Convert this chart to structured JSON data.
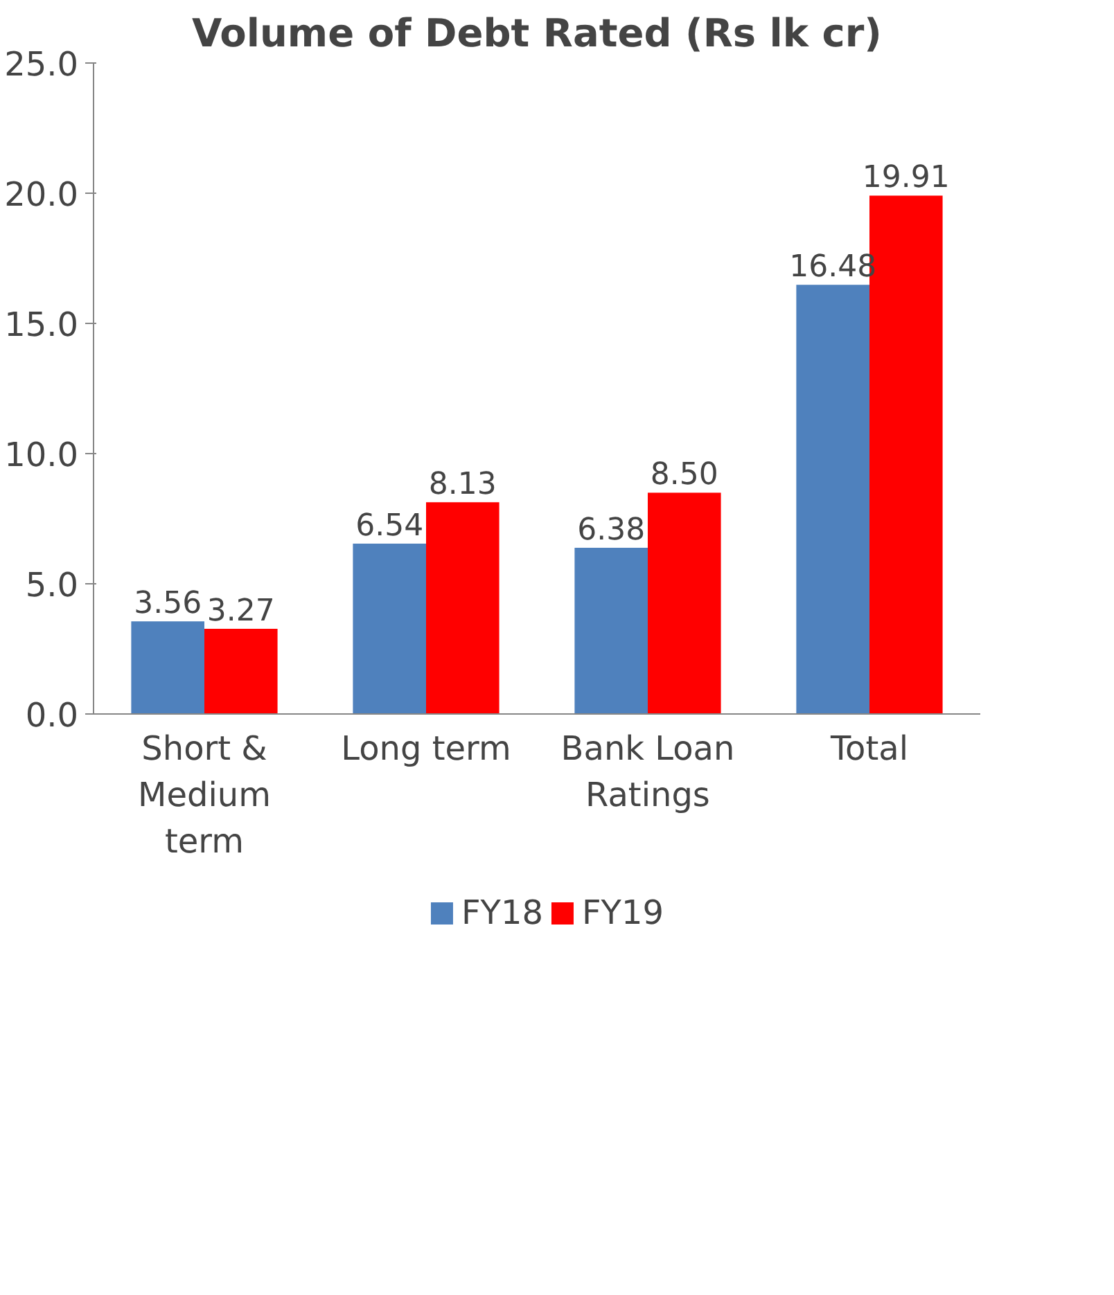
{
  "chart_data": {
    "type": "bar",
    "title": "Volume of Debt Rated (Rs lk cr)",
    "categories": [
      "Short &\nMedium\nterm",
      "Long term",
      "Bank Loan\nRatings",
      "Total"
    ],
    "series": [
      {
        "name": "FY18",
        "color": "#4f81bd",
        "values": [
          3.56,
          6.54,
          6.38,
          16.48
        ],
        "value_labels": [
          "3.56",
          "6.54",
          "6.38",
          "16.48"
        ]
      },
      {
        "name": "FY19",
        "color": "#ff0000",
        "values": [
          3.27,
          8.13,
          8.5,
          19.91
        ],
        "value_labels": [
          "3.27",
          "8.13",
          "8.50",
          "19.91"
        ]
      }
    ],
    "ylim": [
      0,
      25
    ],
    "yticks": [
      {
        "value": 0,
        "label": "0.0"
      },
      {
        "value": 5,
        "label": "5.0"
      },
      {
        "value": 10,
        "label": "10.0"
      },
      {
        "value": 15,
        "label": "15.0"
      },
      {
        "value": 20,
        "label": "20.0"
      },
      {
        "value": 25,
        "label": "25.0"
      }
    ],
    "grid": false,
    "legend": "bottom"
  }
}
